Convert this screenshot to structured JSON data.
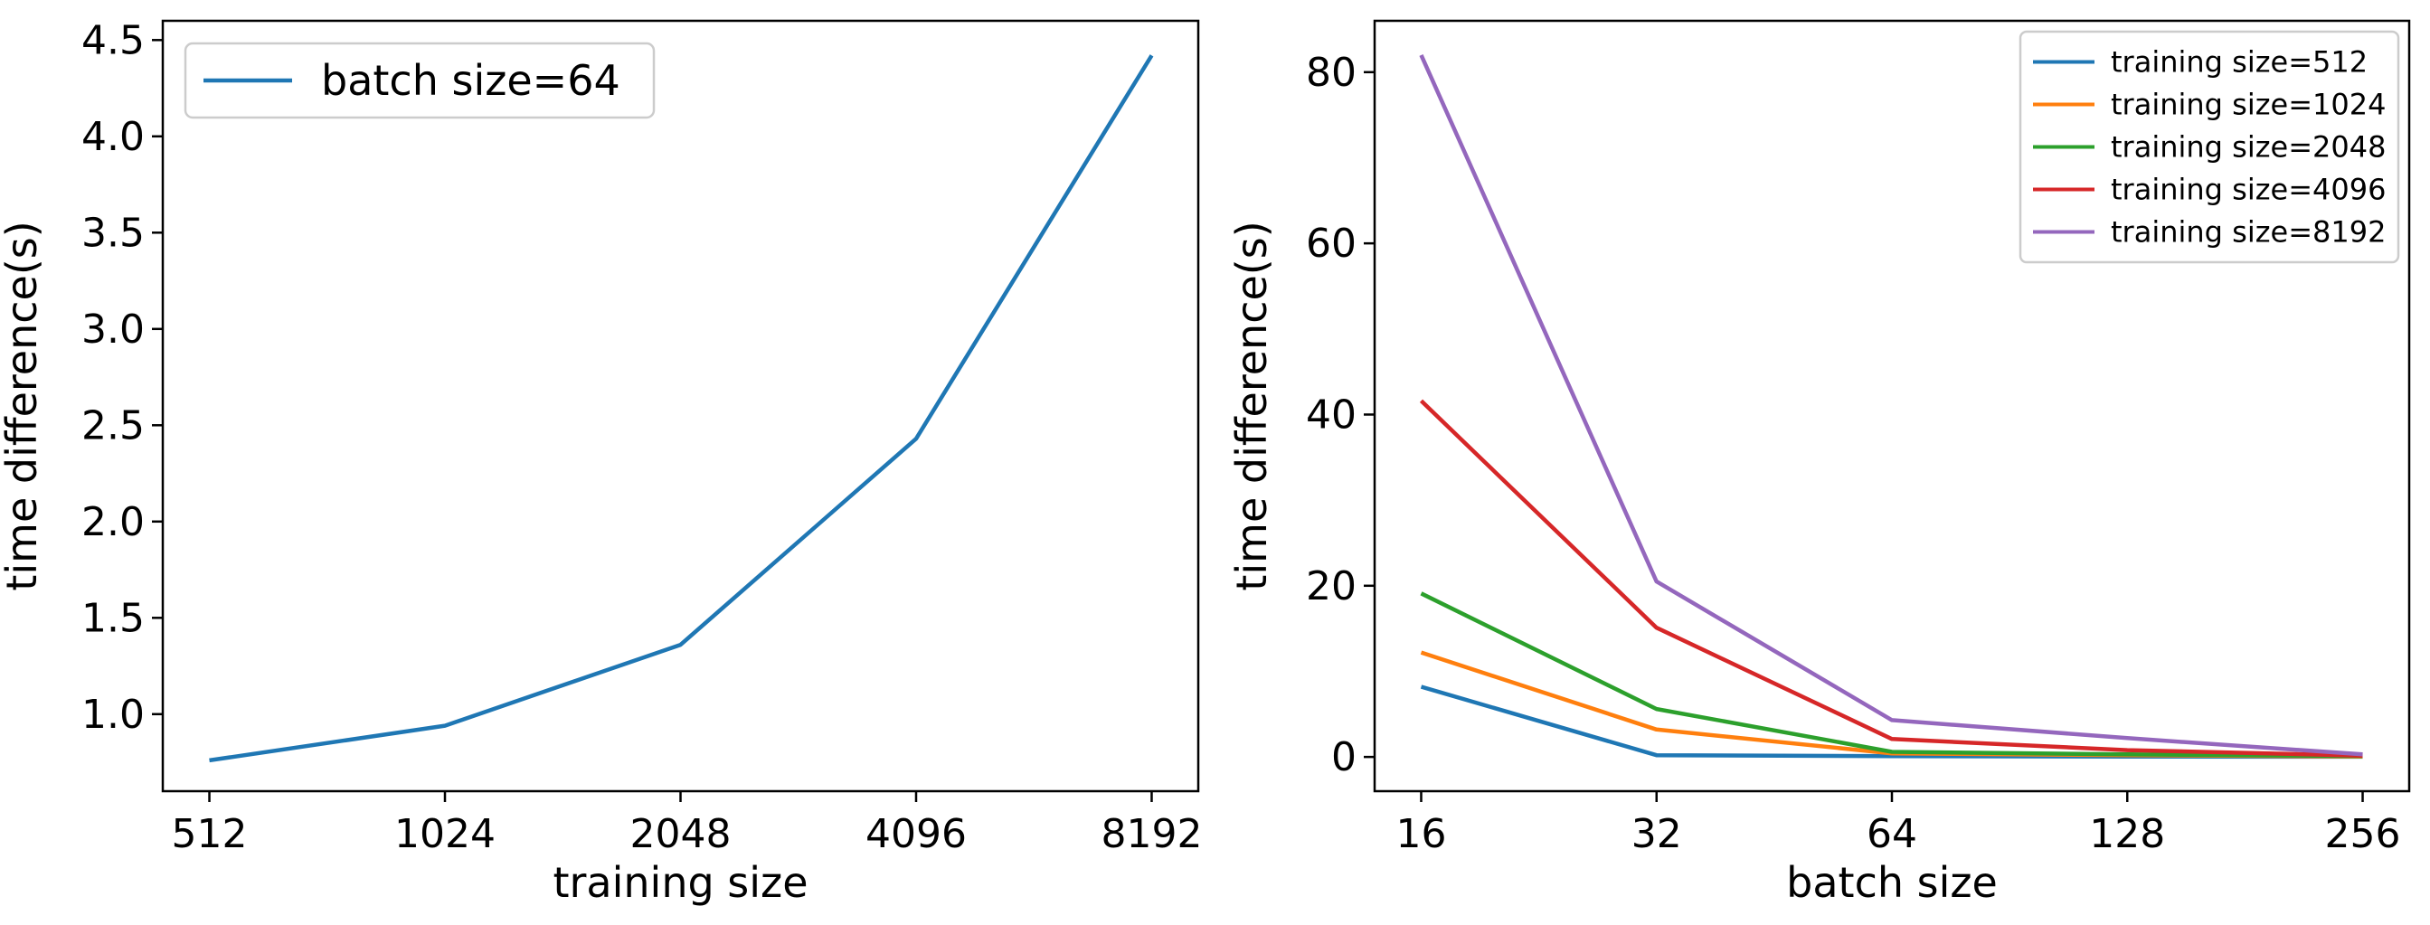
{
  "chart_data": [
    {
      "type": "line",
      "title": "",
      "xlabel": "training size",
      "ylabel": "time difference(s)",
      "categories": [
        "512",
        "1024",
        "2048",
        "4096",
        "8192"
      ],
      "ylim": [
        0.6,
        4.6
      ],
      "yticks": [
        "1.0",
        "1.5",
        "2.0",
        "2.5",
        "3.0",
        "3.5",
        "4.0",
        "4.5"
      ],
      "ytick_values": [
        1.0,
        1.5,
        2.0,
        2.5,
        3.0,
        3.5,
        4.0,
        4.5
      ],
      "legend_position": "upper-left",
      "series": [
        {
          "name": "batch size=64",
          "color": "#1f77b4",
          "values": [
            0.76,
            0.94,
            1.36,
            2.43,
            4.42
          ]
        }
      ]
    },
    {
      "type": "line",
      "title": "",
      "xlabel": "batch size",
      "ylabel": "time difference(s)",
      "categories": [
        "16",
        "32",
        "64",
        "128",
        "256"
      ],
      "ylim": [
        -4,
        86
      ],
      "yticks": [
        "0",
        "20",
        "40",
        "60",
        "80"
      ],
      "ytick_values": [
        0,
        20,
        40,
        60,
        80
      ],
      "legend_position": "upper-right",
      "series": [
        {
          "name": "training size=512",
          "color": "#1f77b4",
          "values": [
            8.2,
            0.2,
            0.1,
            0.05,
            0.02
          ]
        },
        {
          "name": "training size=1024",
          "color": "#ff7f0e",
          "values": [
            12.2,
            3.2,
            0.4,
            0.2,
            0.05
          ]
        },
        {
          "name": "training size=2048",
          "color": "#2ca02c",
          "values": [
            19.1,
            5.6,
            0.6,
            0.3,
            0.1
          ]
        },
        {
          "name": "training size=4096",
          "color": "#d62728",
          "values": [
            41.6,
            15.1,
            2.1,
            0.8,
            0.15
          ]
        },
        {
          "name": "training size=8192",
          "color": "#9467bd",
          "values": [
            82.0,
            20.5,
            4.3,
            2.2,
            0.3
          ]
        }
      ]
    }
  ]
}
